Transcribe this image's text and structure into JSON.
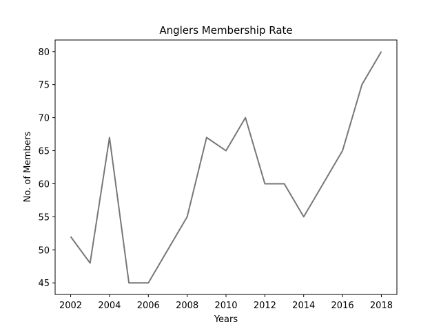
{
  "chart_data": {
    "type": "line",
    "title": "Anglers Membership Rate",
    "xlabel": "Years",
    "ylabel": "No. of Members",
    "x": [
      2002,
      2003,
      2004,
      2005,
      2006,
      2007,
      2008,
      2009,
      2010,
      2011,
      2012,
      2013,
      2014,
      2015,
      2016,
      2017,
      2018
    ],
    "series": [
      {
        "values": [
          52,
          48,
          67,
          45,
          45,
          50,
          55,
          67,
          65,
          70,
          60,
          60,
          55,
          60,
          65,
          75,
          80
        ],
        "color": "#777777"
      }
    ],
    "x_ticks": [
      2002,
      2004,
      2006,
      2008,
      2010,
      2012,
      2014,
      2016,
      2018
    ],
    "y_ticks": [
      45,
      50,
      55,
      60,
      65,
      70,
      75,
      80
    ],
    "xlim": [
      2001.2,
      2018.8
    ],
    "ylim": [
      43.25,
      81.75
    ],
    "grid": false,
    "legend": "none"
  }
}
